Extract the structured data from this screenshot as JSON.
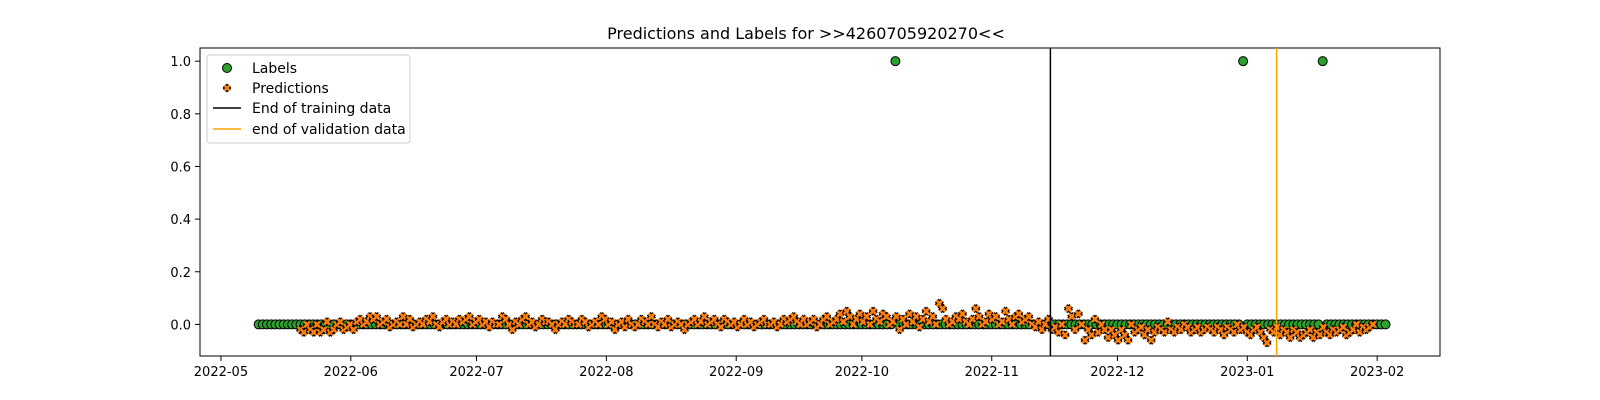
{
  "chart_data": {
    "type": "scatter",
    "title": "Predictions and Labels for >>4260705920270<<",
    "xlabel": "",
    "ylabel": "",
    "x_start": "2022-05-10",
    "x_end": "2023-02-03",
    "xlim": [
      "2022-04-26",
      "2023-02-16"
    ],
    "ylim": [
      -0.12,
      1.05
    ],
    "x_ticks": [
      "2022-05",
      "2022-06",
      "2022-07",
      "2022-08",
      "2022-09",
      "2022-10",
      "2022-11",
      "2022-12",
      "2023-01",
      "2023-02"
    ],
    "y_ticks": [
      "0.0",
      "0.2",
      "0.4",
      "0.6",
      "0.8",
      "1.0"
    ],
    "grid": false,
    "legend": {
      "placement": "top-left",
      "entries": [
        "Labels",
        "Predictions",
        "End of training data",
        "end of validation data"
      ]
    },
    "labels_positive_dates": [
      "2022-10-09",
      "2022-12-31",
      "2023-01-19"
    ],
    "predictions": {
      "start": "2022-05-20",
      "end": "2023-01-31",
      "values": [
        -0.02,
        -0.03,
        0.0,
        -0.02,
        -0.03,
        0.0,
        -0.03,
        -0.02,
        0.01,
        -0.03,
        -0.02,
        0.0,
        0.01,
        -0.02,
        -0.01,
        0.0,
        -0.02,
        0.01,
        0.02,
        0.0,
        0.01,
        0.03,
        0.02,
        0.03,
        0.0,
        0.01,
        0.02,
        -0.01,
        0.0,
        0.01,
        0.0,
        0.03,
        0.0,
        0.02,
        -0.01,
        0.0,
        0.01,
        0.0,
        0.02,
        0.01,
        0.03,
        0.0,
        -0.01,
        0.01,
        0.02,
        0.0,
        0.01,
        0.0,
        0.02,
        0.01,
        0.02,
        0.03,
        0.0,
        0.01,
        0.02,
        0.0,
        0.01,
        -0.01,
        0.01,
        0.0,
        0.0,
        0.03,
        0.02,
        0.0,
        -0.02,
        0.01,
        0.0,
        0.02,
        0.03,
        0.0,
        0.01,
        -0.01,
        0.0,
        0.02,
        0.01,
        0.01,
        0.0,
        -0.02,
        0.0,
        0.01,
        0.0,
        0.02,
        0.01,
        0.0,
        0.0,
        0.02,
        0.01,
        -0.01,
        0.0,
        0.01,
        0.0,
        0.03,
        0.02,
        0.0,
        0.01,
        -0.02,
        0.0,
        0.01,
        -0.01,
        0.02,
        0.0,
        -0.01,
        0.0,
        0.02,
        0.01,
        0.0,
        0.03,
        0.0,
        -0.01,
        0.01,
        0.0,
        0.02,
        -0.01,
        0.0,
        0.01,
        0.0,
        -0.02,
        0.0,
        0.01,
        0.02,
        0.0,
        0.01,
        0.03,
        0.0,
        0.01,
        0.02,
        0.0,
        -0.01,
        0.02,
        0.01,
        0.0,
        0.01,
        -0.01,
        0.0,
        0.02,
        0.0,
        0.01,
        -0.01,
        0.0,
        0.01,
        0.02,
        0.0,
        0.0,
        0.01,
        -0.01,
        0.0,
        0.02,
        0.01,
        0.02,
        0.03,
        0.01,
        0.0,
        0.02,
        0.0,
        0.01,
        0.02,
        -0.01,
        0.0,
        0.02,
        0.03,
        0.0,
        0.01,
        0.02,
        0.04,
        0.01,
        0.05,
        0.03,
        0.0,
        0.02,
        0.04,
        0.01,
        0.03,
        0.0,
        0.05,
        0.02,
        0.01,
        0.04,
        0.03,
        0.0,
        0.01,
        0.03,
        -0.02,
        0.02,
        0.0,
        0.04,
        0.01,
        0.03,
        -0.01,
        0.02,
        0.05,
        0.01,
        0.03,
        0.0,
        0.08,
        0.06,
        0.02,
        0.0,
        0.01,
        0.03,
        0.02,
        0.04,
        0.01,
        0.0,
        0.02,
        0.06,
        0.03,
        0.0,
        0.01,
        0.04,
        0.02,
        0.03,
        0.0,
        0.01,
        0.05,
        0.02,
        0.0,
        0.03,
        0.04,
        0.01,
        0.02,
        0.03,
        0.0,
        -0.01,
        0.01,
        -0.02,
        0.0,
        0.02,
        -0.02,
        -0.01,
        -0.03,
        0.0,
        -0.04,
        0.06,
        0.03,
        -0.02,
        0.04,
        0.0,
        -0.06,
        -0.02,
        -0.04,
        0.02,
        -0.03,
        0.0,
        -0.02,
        -0.05,
        -0.02,
        -0.04,
        -0.06,
        -0.02,
        -0.04,
        -0.06,
        0.0,
        -0.03,
        -0.02,
        -0.01,
        -0.04,
        -0.02,
        -0.06,
        -0.03,
        -0.01,
        -0.02,
        -0.03,
        0.01,
        -0.02,
        -0.03,
        -0.01,
        -0.02,
        0.0,
        -0.01,
        -0.03,
        -0.02,
        -0.01,
        -0.03,
        -0.02,
        -0.01,
        -0.02,
        -0.03,
        -0.01,
        -0.02,
        -0.04,
        -0.01,
        -0.02,
        -0.03,
        0.0,
        -0.02,
        -0.01,
        -0.03,
        -0.04,
        -0.02,
        -0.01,
        -0.03,
        -0.05,
        -0.07,
        -0.02,
        -0.03,
        -0.01,
        -0.04,
        -0.02,
        -0.03,
        -0.05,
        -0.02,
        -0.03,
        -0.05,
        -0.04,
        -0.03,
        -0.02,
        -0.05,
        -0.03,
        -0.04,
        -0.01,
        -0.03,
        -0.04,
        -0.02,
        -0.03,
        -0.02,
        -0.01,
        -0.04,
        -0.03,
        -0.02,
        0.0,
        -0.03,
        -0.01,
        -0.02,
        -0.01,
        0.0
      ]
    },
    "vlines": [
      {
        "label": "End of training data",
        "date": "2022-11-15",
        "color": "#000000"
      },
      {
        "label": "end of validation data",
        "date": "2023-01-08",
        "color": "#ffa500"
      }
    ],
    "colors": {
      "labels_face": "#2ca02c",
      "predictions_face": "#ff7f0e",
      "marker_edge": "#000000"
    }
  }
}
